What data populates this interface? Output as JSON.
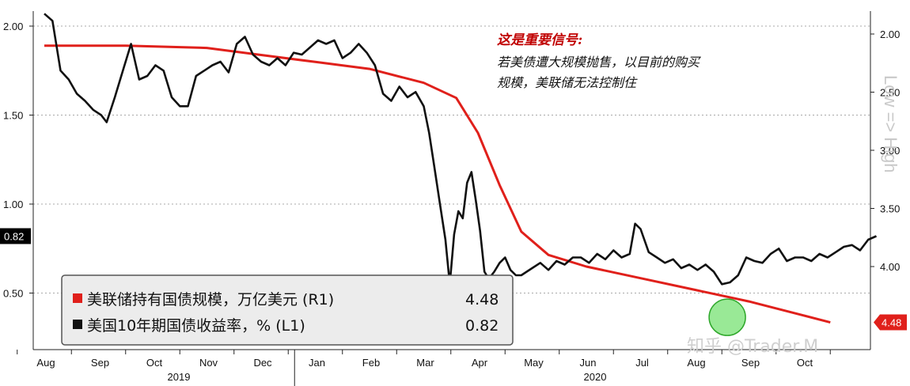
{
  "chart_data": {
    "type": "line",
    "annotation": {
      "title": "这是重要信号:",
      "lines": [
        "若美债遭大规模抛售，以目前的购买",
        "规模，美联储无法控制住"
      ]
    },
    "x_ticks": [
      "Aug",
      "Sep",
      "Oct",
      "Nov",
      "Dec",
      "Jan",
      "Feb",
      "Mar",
      "Apr",
      "May",
      "Jun",
      "Jul",
      "Aug",
      "Sep",
      "Oct"
    ],
    "x_years": [
      "2019",
      "2020"
    ],
    "left_axis": {
      "ticks": [
        "2.00",
        "1.50",
        "1.00",
        "0.50"
      ],
      "ylim": [
        0.27,
        2.1
      ],
      "last_value_label": "0.82"
    },
    "right_axis": {
      "ticks": [
        "2.00",
        "2.50",
        "3.00",
        "3.50",
        "4.00"
      ],
      "ylim": [
        1.65,
        4.9
      ],
      "inverted": true,
      "label": "Low => High",
      "last_value_label": "4.48"
    },
    "series": [
      {
        "name": "美联储持有国债规模，万亿美元 (R1)",
        "axis": "right",
        "color": "#e0201b",
        "last_value": "4.48",
        "points": [
          [
            0,
            2.1
          ],
          [
            1.5,
            2.1
          ],
          [
            3,
            2.12
          ],
          [
            4,
            2.18
          ],
          [
            5,
            2.24
          ],
          [
            6,
            2.3
          ],
          [
            7,
            2.42
          ],
          [
            7.6,
            2.55
          ],
          [
            8.0,
            2.85
          ],
          [
            8.4,
            3.3
          ],
          [
            8.8,
            3.7
          ],
          [
            9.3,
            3.9
          ],
          [
            10,
            4.0
          ],
          [
            11,
            4.1
          ],
          [
            12,
            4.2
          ],
          [
            13,
            4.3
          ],
          [
            14,
            4.42
          ],
          [
            14.5,
            4.48
          ]
        ]
      },
      {
        "name": "美国10年期国债收益率，% (L1)",
        "axis": "left",
        "color": "#111111",
        "last_value": "0.82",
        "points": [
          [
            0,
            2.07
          ],
          [
            0.15,
            2.03
          ],
          [
            0.3,
            1.75
          ],
          [
            0.45,
            1.7
          ],
          [
            0.6,
            1.62
          ],
          [
            0.75,
            1.58
          ],
          [
            0.9,
            1.53
          ],
          [
            1.05,
            1.5
          ],
          [
            1.15,
            1.46
          ],
          [
            1.3,
            1.6
          ],
          [
            1.45,
            1.75
          ],
          [
            1.6,
            1.9
          ],
          [
            1.75,
            1.7
          ],
          [
            1.9,
            1.72
          ],
          [
            2.05,
            1.78
          ],
          [
            2.2,
            1.75
          ],
          [
            2.35,
            1.6
          ],
          [
            2.5,
            1.55
          ],
          [
            2.65,
            1.55
          ],
          [
            2.8,
            1.72
          ],
          [
            2.95,
            1.75
          ],
          [
            3.1,
            1.78
          ],
          [
            3.25,
            1.8
          ],
          [
            3.4,
            1.74
          ],
          [
            3.55,
            1.9
          ],
          [
            3.7,
            1.94
          ],
          [
            3.85,
            1.84
          ],
          [
            4.0,
            1.8
          ],
          [
            4.15,
            1.78
          ],
          [
            4.3,
            1.82
          ],
          [
            4.45,
            1.78
          ],
          [
            4.6,
            1.85
          ],
          [
            4.75,
            1.84
          ],
          [
            4.9,
            1.88
          ],
          [
            5.05,
            1.92
          ],
          [
            5.2,
            1.9
          ],
          [
            5.35,
            1.92
          ],
          [
            5.5,
            1.82
          ],
          [
            5.65,
            1.85
          ],
          [
            5.8,
            1.9
          ],
          [
            5.95,
            1.85
          ],
          [
            6.1,
            1.78
          ],
          [
            6.25,
            1.62
          ],
          [
            6.4,
            1.58
          ],
          [
            6.55,
            1.66
          ],
          [
            6.7,
            1.6
          ],
          [
            6.85,
            1.63
          ],
          [
            7.0,
            1.55
          ],
          [
            7.1,
            1.4
          ],
          [
            7.2,
            1.2
          ],
          [
            7.3,
            1.0
          ],
          [
            7.4,
            0.8
          ],
          [
            7.48,
            0.55
          ],
          [
            7.56,
            0.83
          ],
          [
            7.64,
            0.96
          ],
          [
            7.72,
            0.92
          ],
          [
            7.8,
            1.12
          ],
          [
            7.88,
            1.18
          ],
          [
            7.96,
            1.02
          ],
          [
            8.04,
            0.85
          ],
          [
            8.12,
            0.62
          ],
          [
            8.2,
            0.58
          ],
          [
            8.3,
            0.62
          ],
          [
            8.4,
            0.67
          ],
          [
            8.5,
            0.7
          ],
          [
            8.6,
            0.63
          ],
          [
            8.7,
            0.6
          ],
          [
            8.8,
            0.6
          ],
          [
            8.9,
            0.62
          ],
          [
            9.0,
            0.64
          ],
          [
            9.15,
            0.67
          ],
          [
            9.3,
            0.63
          ],
          [
            9.45,
            0.68
          ],
          [
            9.6,
            0.66
          ],
          [
            9.75,
            0.7
          ],
          [
            9.9,
            0.7
          ],
          [
            10.05,
            0.67
          ],
          [
            10.2,
            0.72
          ],
          [
            10.35,
            0.69
          ],
          [
            10.5,
            0.74
          ],
          [
            10.65,
            0.7
          ],
          [
            10.8,
            0.72
          ],
          [
            10.9,
            0.89
          ],
          [
            11.0,
            0.86
          ],
          [
            11.15,
            0.73
          ],
          [
            11.3,
            0.7
          ],
          [
            11.45,
            0.67
          ],
          [
            11.6,
            0.69
          ],
          [
            11.75,
            0.64
          ],
          [
            11.9,
            0.66
          ],
          [
            12.05,
            0.63
          ],
          [
            12.2,
            0.66
          ],
          [
            12.35,
            0.62
          ],
          [
            12.5,
            0.55
          ],
          [
            12.65,
            0.56
          ],
          [
            12.8,
            0.6
          ],
          [
            12.95,
            0.7
          ],
          [
            13.1,
            0.68
          ],
          [
            13.25,
            0.67
          ],
          [
            13.4,
            0.72
          ],
          [
            13.55,
            0.75
          ],
          [
            13.7,
            0.68
          ],
          [
            13.85,
            0.7
          ],
          [
            14.0,
            0.7
          ],
          [
            14.15,
            0.68
          ],
          [
            14.3,
            0.72
          ],
          [
            14.45,
            0.7
          ],
          [
            14.6,
            0.73
          ],
          [
            14.75,
            0.76
          ],
          [
            14.9,
            0.77
          ],
          [
            15.05,
            0.74
          ],
          [
            15.2,
            0.8
          ],
          [
            15.35,
            0.82
          ]
        ]
      }
    ],
    "highlight_circle": {
      "x": 12.6,
      "axis": "right",
      "y": 4.45
    },
    "grid": "horizontal-dashed",
    "legend_position": "bottom-left",
    "watermark": "知乎 @Trader.M"
  }
}
